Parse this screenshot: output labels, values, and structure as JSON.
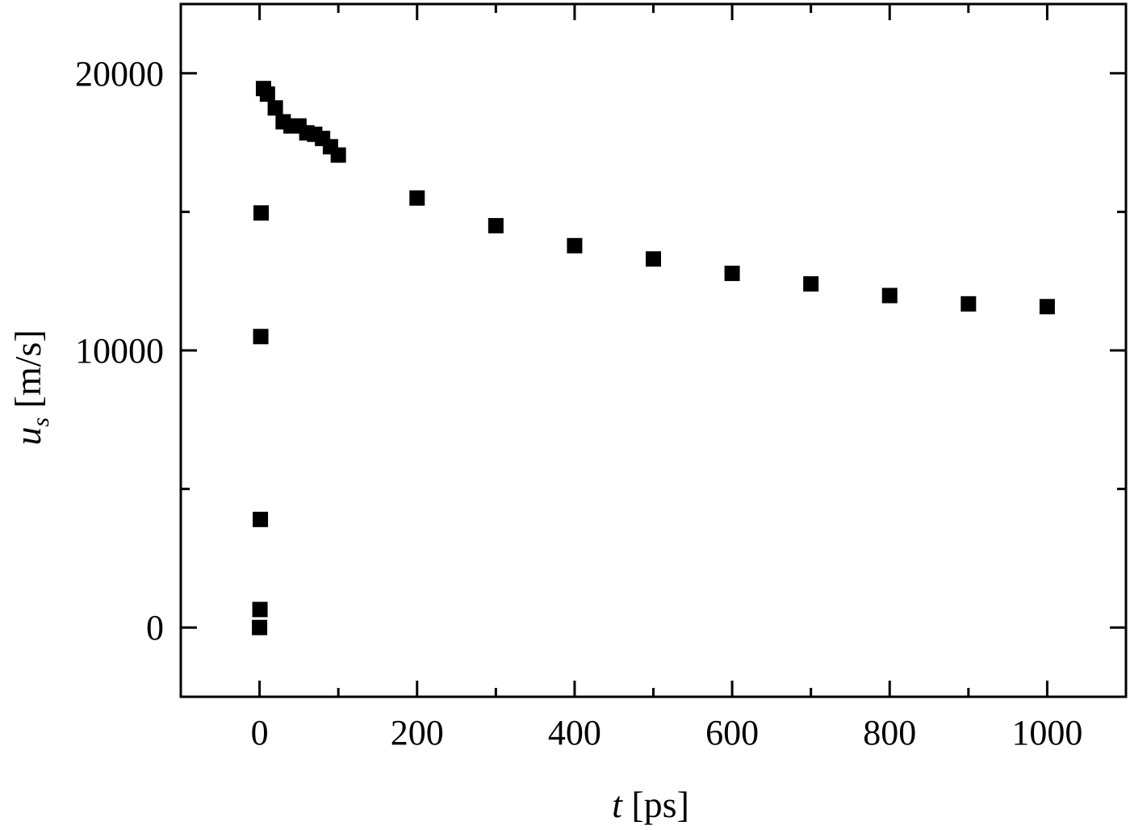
{
  "chart_data": {
    "type": "scatter",
    "xlabel_var": "t",
    "xlabel_unit": " [ps]",
    "ylabel_var": "u",
    "ylabel_sub": "s",
    "ylabel_unit": " [m/s]",
    "xlim": [
      -100,
      1100
    ],
    "ylim": [
      -2500,
      22500
    ],
    "x_ticks": [
      0,
      200,
      400,
      600,
      800,
      1000
    ],
    "x_minor_ticks": [
      -100,
      100,
      300,
      500,
      700,
      900,
      1100
    ],
    "x_tick_labels": [
      "0",
      "200",
      "400",
      "600",
      "800",
      "1000"
    ],
    "y_ticks": [
      0,
      10000,
      20000
    ],
    "y_minor_ticks": [
      5000,
      15000
    ],
    "y_tick_labels": [
      "0",
      "10000",
      "20000"
    ],
    "grid": false,
    "marker": "filled-square",
    "marker_color": "#000000",
    "series": [
      {
        "x": [
          0,
          0.5,
          1,
          1.5,
          2,
          5,
          10,
          20,
          30,
          40,
          50,
          60,
          70,
          80,
          90,
          100,
          200,
          300,
          400,
          500,
          600,
          700,
          800,
          900,
          1000
        ],
        "y": [
          0,
          650,
          3900,
          10500,
          14960,
          19450,
          19250,
          18750,
          18250,
          18100,
          18100,
          17850,
          17800,
          17650,
          17350,
          17050,
          15500,
          14500,
          13780,
          13300,
          12780,
          12400,
          11980,
          11680,
          11580
        ]
      }
    ]
  }
}
